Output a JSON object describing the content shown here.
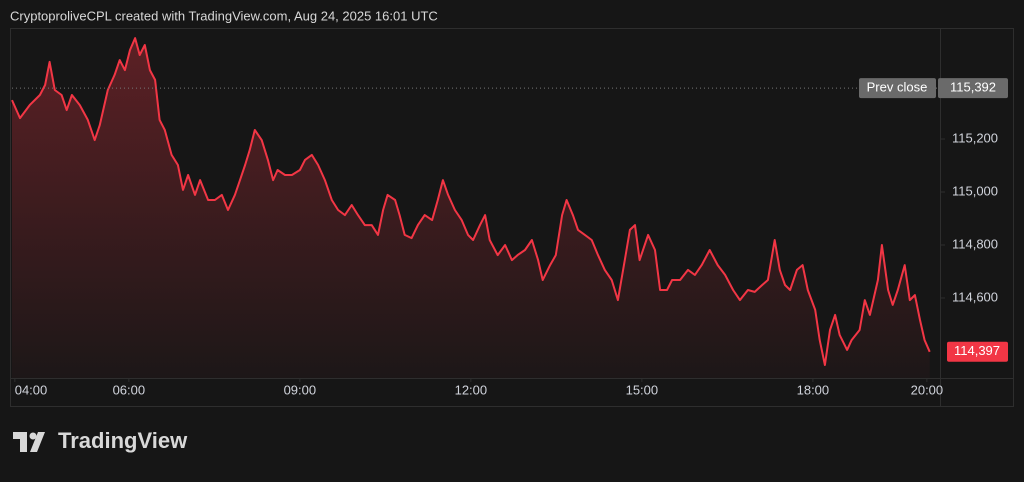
{
  "chart_data": {
    "type": "area",
    "title": "CryptoproliveCPL created with TradingView.com, Aug 24, 2025 16:01 UTC",
    "watermark": "TradingView",
    "color": "#f23645",
    "x": [
      3.95,
      4.09,
      4.26,
      4.44,
      4.53,
      4.61,
      4.7,
      4.82,
      4.91,
      5.0,
      5.14,
      5.28,
      5.4,
      5.49,
      5.63,
      5.75,
      5.84,
      5.93,
      6.02,
      6.11,
      6.19,
      6.28,
      6.37,
      6.46,
      6.54,
      6.63,
      6.75,
      6.86,
      6.95,
      7.04,
      7.16,
      7.25,
      7.39,
      7.51,
      7.63,
      7.74,
      7.86,
      7.95,
      8.04,
      8.12,
      8.21,
      8.33,
      8.44,
      8.53,
      8.61,
      8.74,
      8.86,
      9.0,
      9.09,
      9.21,
      9.32,
      9.44,
      9.56,
      9.67,
      9.79,
      9.91,
      10.02,
      10.14,
      10.26,
      10.37,
      10.46,
      10.54,
      10.67,
      10.75,
      10.84,
      10.96,
      11.07,
      11.19,
      11.32,
      11.42,
      11.51,
      11.6,
      11.72,
      11.84,
      11.95,
      12.04,
      12.16,
      12.25,
      12.33,
      12.47,
      12.6,
      12.72,
      12.82,
      12.95,
      13.07,
      13.18,
      13.26,
      13.39,
      13.49,
      13.6,
      13.68,
      13.79,
      13.88,
      14.0,
      14.12,
      14.23,
      14.35,
      14.47,
      14.58,
      14.7,
      14.79,
      14.88,
      14.96,
      15.11,
      15.23,
      15.32,
      15.44,
      15.53,
      15.67,
      15.81,
      15.93,
      16.05,
      16.19,
      16.33,
      16.46,
      16.6,
      16.72,
      16.86,
      16.98,
      17.11,
      17.21,
      17.33,
      17.42,
      17.51,
      17.6,
      17.72,
      17.82,
      17.91,
      18.04,
      18.12,
      18.21,
      18.3,
      18.39,
      18.47,
      18.6,
      18.68,
      18.82,
      18.91,
      19.0,
      19.14,
      19.21,
      19.32,
      19.4,
      19.49,
      19.61,
      19.7,
      19.79,
      19.88,
      19.96,
      20.05
    ],
    "values": [
      115347,
      115279,
      115328,
      115366,
      115404,
      115491,
      115385,
      115366,
      115309,
      115366,
      115328,
      115272,
      115196,
      115253,
      115385,
      115442,
      115498,
      115460,
      115536,
      115581,
      115517,
      115555,
      115460,
      115423,
      115272,
      115234,
      115140,
      115102,
      115008,
      115064,
      114989,
      115045,
      114970,
      114970,
      114989,
      114932,
      114989,
      115045,
      115102,
      115158,
      115234,
      115196,
      115121,
      115045,
      115083,
      115064,
      115064,
      115083,
      115121,
      115140,
      115102,
      115045,
      114970,
      114932,
      114913,
      114951,
      114913,
      114875,
      114875,
      114838,
      114932,
      114989,
      114970,
      114913,
      114838,
      114826,
      114875,
      114913,
      114894,
      114970,
      115045,
      114989,
      114932,
      114894,
      114838,
      114819,
      114875,
      114913,
      114819,
      114762,
      114800,
      114743,
      114762,
      114781,
      114819,
      114743,
      114668,
      114724,
      114762,
      114913,
      114970,
      114913,
      114857,
      114838,
      114819,
      114762,
      114706,
      114668,
      114592,
      114743,
      114857,
      114875,
      114743,
      114838,
      114781,
      114630,
      114630,
      114668,
      114668,
      114706,
      114687,
      114724,
      114781,
      114724,
      114687,
      114630,
      114592,
      114630,
      114623,
      114649,
      114668,
      114819,
      114706,
      114649,
      114630,
      114706,
      114724,
      114630,
      114555,
      114441,
      114347,
      114479,
      114536,
      114460,
      114404,
      114441,
      114479,
      114592,
      114536,
      114668,
      114800,
      114630,
      114574,
      114630,
      114724,
      114592,
      114611,
      114517,
      114441,
      114397
    ],
    "xlim": [
      3.95,
      20.23
    ],
    "xticks": [
      {
        "value": 4,
        "label": "04:00"
      },
      {
        "value": 6,
        "label": "06:00"
      },
      {
        "value": 9,
        "label": "09:00"
      },
      {
        "value": 12,
        "label": "12:00"
      },
      {
        "value": 15,
        "label": "15:00"
      },
      {
        "value": 18,
        "label": "18:00"
      },
      {
        "value": 20,
        "label": "20:00"
      }
    ],
    "ylim": [
      114298,
      115619
    ],
    "yticks": [
      {
        "value": 114600,
        "label": "114,600"
      },
      {
        "value": 114800,
        "label": "114,800"
      },
      {
        "value": 115000,
        "label": "115,000"
      },
      {
        "value": 115200,
        "label": "115,200"
      }
    ],
    "grid": false,
    "prev_close": {
      "name": "Prev close",
      "value": 115392,
      "label": "115,392"
    },
    "last_price": {
      "value": 114397,
      "label": "114,397"
    }
  }
}
